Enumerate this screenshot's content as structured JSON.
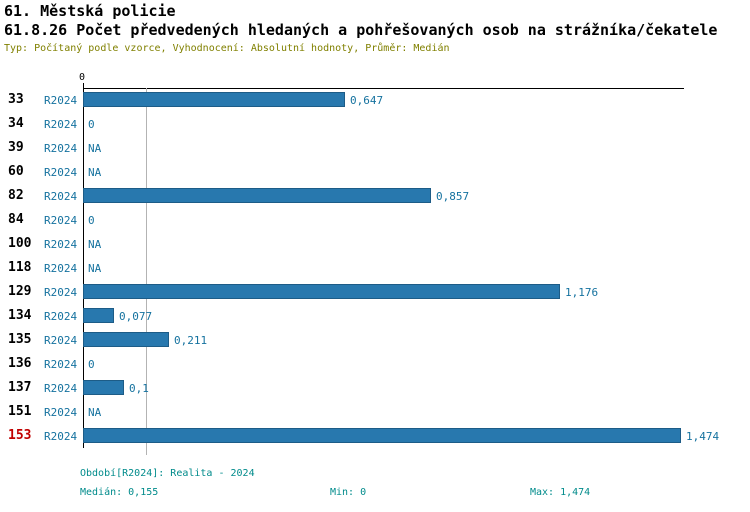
{
  "header": {
    "title1": "61. Městská policie",
    "title2": "61.8.26 Počet předvedených hledaných a pohřešovaných osob na strážníka/čekatele",
    "meta": "Typ: Počítaný podle vzorce, Vyhodnocení: Absolutní hodnoty, Průměr: Medián"
  },
  "chart_data": {
    "type": "bar",
    "orientation": "horizontal",
    "series_label": "R2024",
    "axis_top_tick": "0",
    "xlim": [
      0,
      1.474
    ],
    "median": 0.155,
    "grid": "median-line-only",
    "rows": [
      {
        "id": "33",
        "value": 0.647,
        "label": "0,647",
        "highlight": false
      },
      {
        "id": "34",
        "value": 0,
        "label": "0",
        "highlight": false
      },
      {
        "id": "39",
        "value": null,
        "label": "NA",
        "highlight": false
      },
      {
        "id": "60",
        "value": null,
        "label": "NA",
        "highlight": false
      },
      {
        "id": "82",
        "value": 0.857,
        "label": "0,857",
        "highlight": false
      },
      {
        "id": "84",
        "value": 0,
        "label": "0",
        "highlight": false
      },
      {
        "id": "100",
        "value": null,
        "label": "NA",
        "highlight": false
      },
      {
        "id": "118",
        "value": null,
        "label": "NA",
        "highlight": false
      },
      {
        "id": "129",
        "value": 1.176,
        "label": "1,176",
        "highlight": false
      },
      {
        "id": "134",
        "value": 0.077,
        "label": "0,077",
        "highlight": false
      },
      {
        "id": "135",
        "value": 0.211,
        "label": "0,211",
        "highlight": false
      },
      {
        "id": "136",
        "value": 0,
        "label": "0",
        "highlight": false
      },
      {
        "id": "137",
        "value": 0.1,
        "label": "0,1",
        "highlight": false
      },
      {
        "id": "151",
        "value": null,
        "label": "NA",
        "highlight": false
      },
      {
        "id": "153",
        "value": 1.474,
        "label": "1,474",
        "highlight": true
      }
    ],
    "colors": {
      "bar_fill": "#2878ae",
      "bar_border": "#1d5c87",
      "value_text": "#15729f",
      "series_text": "#15729f",
      "row_id_text": "#000000",
      "row_id_highlight": "#c00000",
      "meta_text": "#808000",
      "footer_text": "#008b8b",
      "median_line": "#b3b3b3",
      "axis": "#000000"
    }
  },
  "footer": {
    "period": "Období[R2024]: Realita - 2024",
    "median": "Medián: 0,155",
    "min": "Min: 0",
    "max": "Max: 1,474"
  }
}
